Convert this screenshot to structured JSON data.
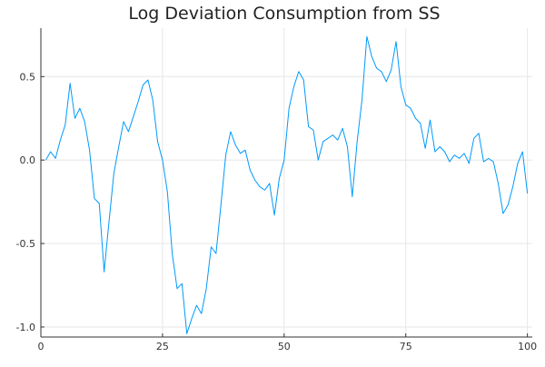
{
  "chart_data": {
    "type": "line",
    "title": "Log Deviation Consumption from SS",
    "xlabel": "",
    "ylabel": "",
    "xlim": [
      0,
      101
    ],
    "ylim": [
      -1.06,
      0.79
    ],
    "grid": true,
    "legend": "none",
    "x_ticks": [
      0,
      25,
      50,
      75,
      100
    ],
    "x_tick_labels": [
      "0",
      "25",
      "50",
      "75",
      "100"
    ],
    "y_ticks": [
      0.5,
      0.0,
      -0.5,
      -1.0
    ],
    "y_tick_labels": [
      "0.5",
      "0.0",
      "-0.5",
      "-1.0"
    ],
    "series": [
      {
        "name": "",
        "color": "#009AFA",
        "x": [
          1,
          2,
          3,
          4,
          5,
          6,
          7,
          8,
          9,
          10,
          11,
          12,
          13,
          14,
          15,
          16,
          17,
          18,
          19,
          20,
          21,
          22,
          23,
          24,
          25,
          26,
          27,
          28,
          29,
          30,
          31,
          32,
          33,
          34,
          35,
          36,
          37,
          38,
          39,
          40,
          41,
          42,
          43,
          44,
          45,
          46,
          47,
          48,
          49,
          50,
          51,
          52,
          53,
          54,
          55,
          56,
          57,
          58,
          59,
          60,
          61,
          62,
          63,
          64,
          65,
          66,
          67,
          68,
          69,
          70,
          71,
          72,
          73,
          74,
          75,
          76,
          77,
          78,
          79,
          80,
          81,
          82,
          83,
          84,
          85,
          86,
          87,
          88,
          89,
          90,
          91,
          92,
          93,
          94,
          95,
          96,
          97,
          98,
          99,
          100
        ],
        "values": [
          0.0,
          0.05,
          0.01,
          0.12,
          0.21,
          0.46,
          0.25,
          0.31,
          0.23,
          0.06,
          -0.23,
          -0.26,
          -0.67,
          -0.37,
          -0.08,
          0.08,
          0.23,
          0.17,
          0.26,
          0.35,
          0.45,
          0.48,
          0.36,
          0.11,
          0.0,
          -0.19,
          -0.56,
          -0.77,
          -0.74,
          -1.04,
          -0.95,
          -0.87,
          -0.92,
          -0.77,
          -0.52,
          -0.56,
          -0.27,
          0.03,
          0.17,
          0.09,
          0.04,
          0.06,
          -0.06,
          -0.12,
          -0.16,
          -0.18,
          -0.14,
          -0.33,
          -0.11,
          0.0,
          0.31,
          0.44,
          0.53,
          0.48,
          0.2,
          0.18,
          0.0,
          0.11,
          0.13,
          0.15,
          0.12,
          0.19,
          0.08,
          -0.22,
          0.11,
          0.36,
          0.74,
          0.62,
          0.55,
          0.53,
          0.47,
          0.54,
          0.71,
          0.44,
          0.33,
          0.31,
          0.25,
          0.22,
          0.07,
          0.24,
          0.05,
          0.08,
          0.05,
          -0.01,
          0.03,
          0.01,
          0.04,
          -0.02,
          0.13,
          0.16,
          -0.01,
          0.01,
          -0.01,
          -0.14,
          -0.32,
          -0.27,
          -0.16,
          -0.02,
          0.05,
          -0.2
        ]
      }
    ]
  }
}
